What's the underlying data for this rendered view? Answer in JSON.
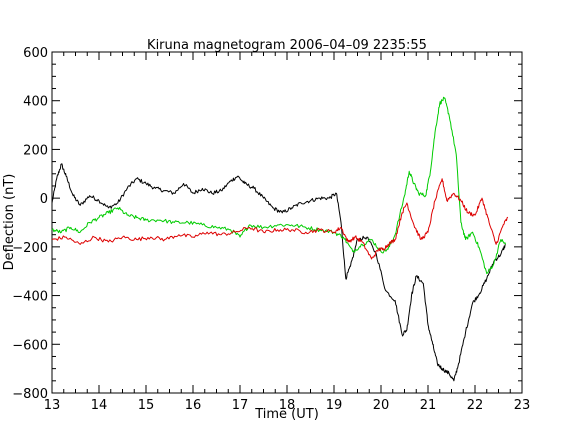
{
  "chart_data": {
    "type": "line",
    "title": "Kiruna magnetogram 2006–04–09 2235:55",
    "xlabel": "Time (UT)",
    "ylabel": "Deflection (nT)",
    "xlim": [
      13,
      23
    ],
    "ylim": [
      -800,
      600
    ],
    "xticks": [
      13,
      14,
      15,
      16,
      17,
      18,
      19,
      20,
      21,
      22,
      23
    ],
    "yticks": [
      -800,
      -600,
      -400,
      -200,
      0,
      200,
      400,
      600
    ],
    "xtick_labels": [
      "13",
      "14",
      "15",
      "16",
      "17",
      "18",
      "19",
      "20",
      "21",
      "22",
      "23"
    ],
    "ytick_labels": [
      "−800",
      "−600",
      "−400",
      "−200",
      "0",
      "200",
      "400",
      "600"
    ],
    "grid": false,
    "series": [
      {
        "color": "#000000",
        "x": [
          13.0,
          13.1,
          13.2,
          13.3,
          13.45,
          13.6,
          13.8,
          14.0,
          14.2,
          14.4,
          14.6,
          14.8,
          15.0,
          15.2,
          15.4,
          15.6,
          15.8,
          16.0,
          16.2,
          16.4,
          16.6,
          16.8,
          16.95,
          17.1,
          17.3,
          17.5,
          17.7,
          17.9,
          18.1,
          18.3,
          18.5,
          18.7,
          18.9,
          19.05,
          19.15,
          19.25,
          19.35,
          19.5,
          19.7,
          19.9,
          20.1,
          20.3,
          20.45,
          20.55,
          20.65,
          20.75,
          20.9,
          21.0,
          21.1,
          21.2,
          21.3,
          21.45,
          21.55,
          21.65,
          21.8,
          21.95,
          22.1,
          22.25,
          22.4,
          22.55,
          22.65
        ],
        "y": [
          -20,
          80,
          140,
          90,
          10,
          -30,
          10,
          -10,
          -40,
          -20,
          40,
          80,
          60,
          40,
          30,
          20,
          60,
          20,
          40,
          20,
          30,
          70,
          90,
          60,
          40,
          0,
          -40,
          -60,
          -40,
          -20,
          -10,
          0,
          0,
          20,
          -100,
          -330,
          -280,
          -170,
          -160,
          -230,
          -380,
          -420,
          -560,
          -540,
          -400,
          -320,
          -350,
          -520,
          -600,
          -680,
          -700,
          -720,
          -750,
          -680,
          -550,
          -430,
          -390,
          -330,
          -260,
          -230,
          -190
        ]
      },
      {
        "color": "#00cc00",
        "x": [
          13.0,
          13.2,
          13.4,
          13.6,
          13.8,
          14.0,
          14.2,
          14.4,
          14.6,
          14.8,
          15.0,
          15.3,
          15.6,
          15.9,
          16.2,
          16.5,
          16.8,
          17.0,
          17.2,
          17.5,
          17.8,
          18.1,
          18.4,
          18.7,
          19.0,
          19.2,
          19.4,
          19.6,
          19.8,
          20.0,
          20.15,
          20.3,
          20.5,
          20.6,
          20.7,
          20.8,
          20.95,
          21.05,
          21.15,
          21.25,
          21.35,
          21.45,
          21.6,
          21.7,
          21.8,
          21.95,
          22.1,
          22.25,
          22.4,
          22.55,
          22.65
        ],
        "y": [
          -130,
          -140,
          -120,
          -140,
          -100,
          -80,
          -60,
          -40,
          -70,
          -80,
          -90,
          -90,
          -100,
          -100,
          -110,
          -120,
          -130,
          -160,
          -110,
          -120,
          -110,
          -110,
          -120,
          -130,
          -140,
          -160,
          -220,
          -190,
          -170,
          -220,
          -210,
          -150,
          10,
          110,
          60,
          20,
          10,
          110,
          270,
          390,
          410,
          340,
          180,
          -100,
          -170,
          -140,
          -210,
          -310,
          -270,
          -170,
          -190
        ]
      },
      {
        "color": "#dd0000",
        "x": [
          13.0,
          13.3,
          13.6,
          13.9,
          14.2,
          14.5,
          14.8,
          15.1,
          15.4,
          15.7,
          16.0,
          16.3,
          16.6,
          16.9,
          17.2,
          17.5,
          17.8,
          18.1,
          18.4,
          18.7,
          19.0,
          19.15,
          19.3,
          19.45,
          19.6,
          19.8,
          19.95,
          20.05,
          20.15,
          20.3,
          20.45,
          20.55,
          20.7,
          20.85,
          21.0,
          21.15,
          21.3,
          21.4,
          21.55,
          21.7,
          21.85,
          22.0,
          22.15,
          22.3,
          22.45,
          22.6,
          22.7
        ],
        "y": [
          -170,
          -160,
          -190,
          -160,
          -180,
          -160,
          -170,
          -160,
          -170,
          -150,
          -160,
          -140,
          -150,
          -140,
          -120,
          -140,
          -130,
          -130,
          -140,
          -130,
          -140,
          -120,
          -180,
          -160,
          -180,
          -250,
          -210,
          -210,
          -190,
          -170,
          -60,
          -20,
          -110,
          -170,
          -140,
          -10,
          80,
          -10,
          20,
          -10,
          -60,
          -70,
          0,
          -100,
          -190,
          -110,
          -80
        ]
      }
    ]
  }
}
